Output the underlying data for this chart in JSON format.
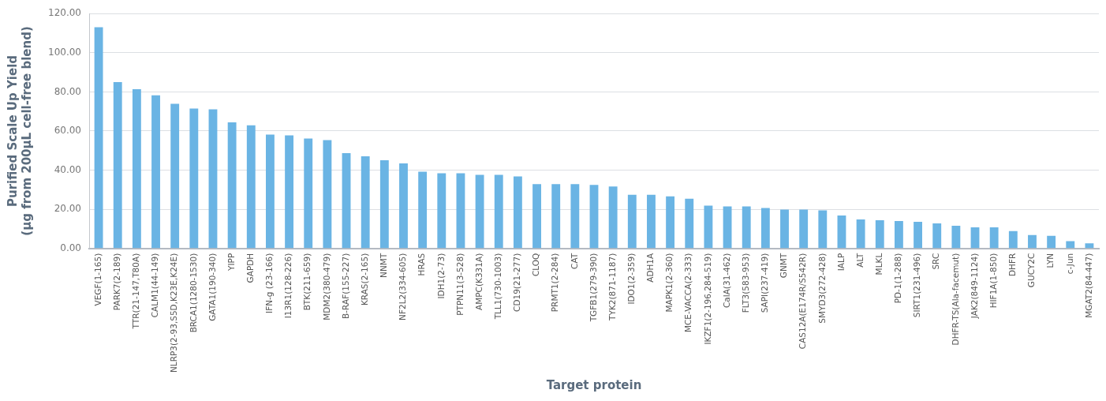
{
  "chart_data": {
    "type": "bar",
    "xlabel": "Target protein",
    "ylabel": "Purified Scale Up Yield\n(µg from 200µL cell-free blend)",
    "categories": [
      "VEGF(1-165)",
      "PARK7(2-189)",
      "TTR(21-147,T80A)",
      "CALM1(44-149)",
      "NLRP3(2-93,S5D,K23E,K24E)",
      "BRCA1(1280-1530)",
      "GATA1(190-340)",
      "YIPP",
      "GAPDH",
      "IFN-g (23-166)",
      "I13R1(128-226)",
      "BTK(211-659)",
      "MDM2(380-479)",
      "B-RAF(155-227)",
      "KRAS(2-165)",
      "NNMT",
      "NF2L2(334-605)",
      "HRAS",
      "IDH1(2-73)",
      "PTPN11(3-528)",
      "AMPC(K331A)",
      "TLL1(730-1003)",
      "CD19(21-277)",
      "CLOQ",
      "PRMT1(2-284)",
      "CAT",
      "TGFB1(279-390)",
      "TYK2(871-1187)",
      "IDO1(2-359)",
      "ADH1A",
      "MAPK1(2-360)",
      "MCE-VACCA(2-333)",
      "IKZF1(2-196,284-519)",
      "CalA(31-462)",
      "FLT3(583-953)",
      "SAPI(237-419)",
      "GNMT",
      "CAS12A(E174R/S542R)",
      "SMYD3(272-428)",
      "IALP",
      "ALT",
      "MLKL",
      "PD-1(1-288)",
      "SIRT1(231-496)",
      "SRC",
      "DHFR-TS(Ala-facemut)",
      "JAK2(849-1124)",
      "HIF1A(1-850)",
      "DHFR",
      "GUCY2C",
      "LYN",
      "c-Jun",
      "MGAT2(84-447)"
    ],
    "values": [
      113,
      85,
      81.4,
      78.2,
      73.9,
      71.5,
      71.1,
      64.4,
      62.9,
      58.2,
      57.8,
      56.2,
      55.4,
      48.7,
      47.1,
      45.1,
      43.5,
      39.2,
      38.4,
      38.4,
      37.6,
      37.6,
      36.8,
      32.9,
      32.9,
      32.9,
      32.5,
      31.7,
      27.4,
      27.4,
      26.6,
      25.4,
      21.9,
      21.5,
      21.5,
      20.7,
      19.9,
      19.9,
      19.5,
      16.8,
      14.8,
      14.4,
      14.0,
      13.6,
      12.8,
      11.6,
      10.8,
      10.8,
      8.9,
      6.9,
      6.5,
      3.7,
      2.6
    ],
    "color": "#6ab4e4",
    "ylim": [
      0,
      120
    ],
    "yticks": [
      {
        "value": 0,
        "label": "0.00"
      },
      {
        "value": 20,
        "label": "20.00"
      },
      {
        "value": 40,
        "label": "40.00"
      },
      {
        "value": 60,
        "label": "60.00"
      },
      {
        "value": 80,
        "label": "80.00"
      },
      {
        "value": 100,
        "label": "100.00"
      },
      {
        "value": 120,
        "label": "120.00"
      }
    ],
    "grid": "y",
    "legend": false
  }
}
